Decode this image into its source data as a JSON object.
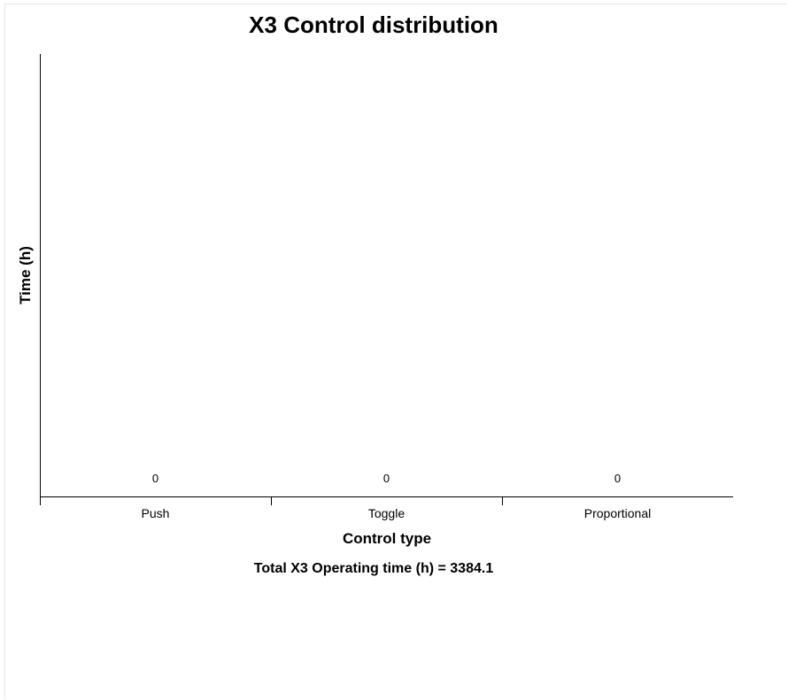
{
  "chart_data": {
    "type": "bar",
    "title": "X3 Control distribution",
    "xlabel": "Control type",
    "ylabel": "Time (h)",
    "categories": [
      "Push",
      "Toggle",
      "Proportional"
    ],
    "values": [
      0,
      0,
      0
    ],
    "data_labels": [
      "0",
      "0",
      "0"
    ],
    "grid": false,
    "legend": "none"
  },
  "footer": {
    "total_label": "Total X3 Operating time (h) = 3384.1"
  }
}
